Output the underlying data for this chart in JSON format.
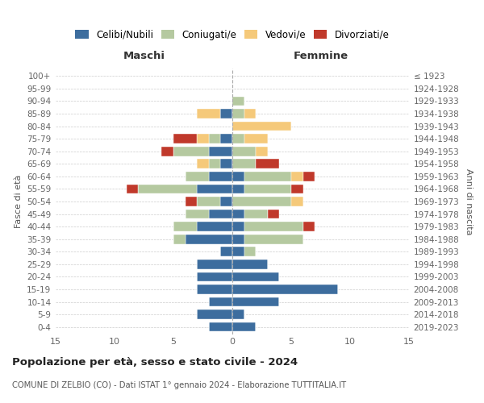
{
  "age_groups": [
    "0-4",
    "5-9",
    "10-14",
    "15-19",
    "20-24",
    "25-29",
    "30-34",
    "35-39",
    "40-44",
    "45-49",
    "50-54",
    "55-59",
    "60-64",
    "65-69",
    "70-74",
    "75-79",
    "80-84",
    "85-89",
    "90-94",
    "95-99",
    "100+"
  ],
  "birth_years": [
    "2019-2023",
    "2014-2018",
    "2009-2013",
    "2004-2008",
    "1999-2003",
    "1994-1998",
    "1989-1993",
    "1984-1988",
    "1979-1983",
    "1974-1978",
    "1969-1973",
    "1964-1968",
    "1959-1963",
    "1954-1958",
    "1949-1953",
    "1944-1948",
    "1939-1943",
    "1934-1938",
    "1929-1933",
    "1924-1928",
    "≤ 1923"
  ],
  "colors": {
    "celibi": "#3d6d9e",
    "coniugati": "#b5c9a0",
    "vedovi": "#f5c97a",
    "divorziati": "#c0392b"
  },
  "maschi": {
    "celibi": [
      2,
      3,
      2,
      3,
      3,
      3,
      1,
      4,
      3,
      2,
      1,
      3,
      2,
      1,
      2,
      1,
      0,
      1,
      0,
      0,
      0
    ],
    "coniugati": [
      0,
      0,
      0,
      0,
      0,
      0,
      0,
      1,
      2,
      2,
      2,
      5,
      2,
      1,
      3,
      1,
      0,
      0,
      0,
      0,
      0
    ],
    "vedovi": [
      0,
      0,
      0,
      0,
      0,
      0,
      0,
      0,
      0,
      0,
      0,
      0,
      0,
      1,
      0,
      1,
      0,
      2,
      0,
      0,
      0
    ],
    "divorziati": [
      0,
      0,
      0,
      0,
      0,
      0,
      0,
      0,
      0,
      0,
      1,
      1,
      0,
      0,
      1,
      2,
      0,
      0,
      0,
      0,
      0
    ]
  },
  "femmine": {
    "celibi": [
      2,
      1,
      4,
      9,
      4,
      3,
      1,
      1,
      1,
      1,
      0,
      1,
      1,
      0,
      0,
      0,
      0,
      0,
      0,
      0,
      0
    ],
    "coniugati": [
      0,
      0,
      0,
      0,
      0,
      0,
      1,
      5,
      5,
      2,
      5,
      4,
      4,
      2,
      2,
      1,
      0,
      1,
      1,
      0,
      0
    ],
    "vedovi": [
      0,
      0,
      0,
      0,
      0,
      0,
      0,
      0,
      0,
      0,
      1,
      0,
      1,
      0,
      1,
      2,
      5,
      1,
      0,
      0,
      0
    ],
    "divorziati": [
      0,
      0,
      0,
      0,
      0,
      0,
      0,
      0,
      1,
      1,
      0,
      1,
      1,
      2,
      0,
      0,
      0,
      0,
      0,
      0,
      0
    ]
  },
  "xlim": 15,
  "title": "Popolazione per età, sesso e stato civile - 2024",
  "subtitle": "COMUNE DI ZELBIO (CO) - Dati ISTAT 1° gennaio 2024 - Elaborazione TUTTITALIA.IT",
  "xlabel_left": "Maschi",
  "xlabel_right": "Femmine",
  "ylabel_left": "Fasce di età",
  "ylabel_right": "Anni di nascita",
  "legend_labels": [
    "Celibi/Nubili",
    "Coniugati/e",
    "Vedovi/e",
    "Divorziati/e"
  ],
  "bg_color": "#ffffff",
  "grid_color": "#cccccc",
  "xticks": [
    -15,
    -10,
    -5,
    0,
    5,
    10,
    15
  ],
  "xtick_labels": [
    "15",
    "10",
    "5",
    "0",
    "5",
    "10",
    "15"
  ]
}
